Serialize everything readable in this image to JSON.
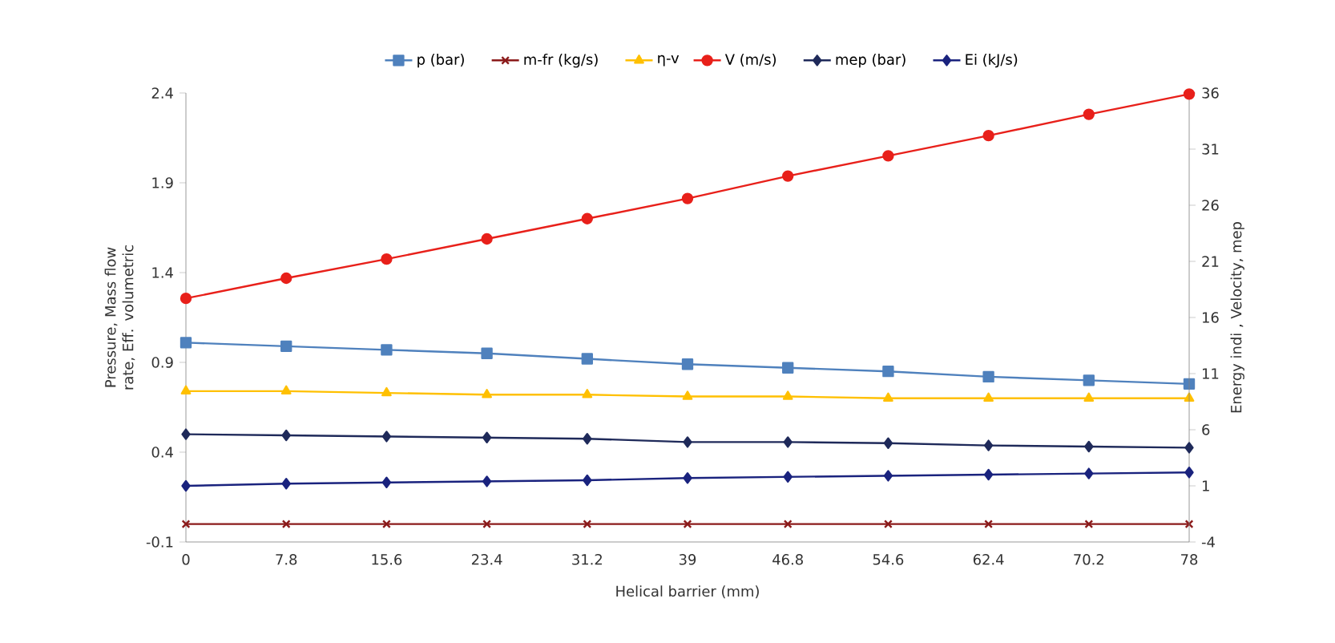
{
  "chart_data": {
    "type": "line",
    "xlabel": "Helical barrier (mm)",
    "ylabel": "Pressure, Mass flow rate, Eff. volumetric",
    "y2label": "Energy indi , Velocity, mep",
    "categories": [
      "0",
      "7.8",
      "15.6",
      "23.4",
      "31.2",
      "39",
      "46.8",
      "54.6",
      "62.4",
      "70.2",
      "78"
    ],
    "ylim": [
      -0.1,
      2.4
    ],
    "yticks": [
      -0.1,
      0.4,
      0.9,
      1.4,
      1.9,
      2.4
    ],
    "y2lim": [
      -4,
      36
    ],
    "y2ticks": [
      -4,
      1,
      6,
      11,
      16,
      21,
      26,
      31,
      36
    ],
    "legend": "top",
    "grid": false,
    "line_style": "solid",
    "series": [
      {
        "name": "p (bar)",
        "color": "#4f81bd",
        "marker": "square",
        "values": [
          1.01,
          0.99,
          0.97,
          0.95,
          0.92,
          0.89,
          0.87,
          0.85,
          0.82,
          0.8,
          0.78
        ]
      },
      {
        "name": "m-fr (kg/s)",
        "color": "#8b1a1a",
        "marker": "cross",
        "values": [
          0.0,
          0.0,
          0.0,
          0.0,
          0.0,
          0.0,
          0.0,
          0.0,
          0.0,
          0.0,
          0.0
        ]
      },
      {
        "name": "η-v",
        "color": "#ffc000",
        "marker": "triangle",
        "values": [
          0.74,
          0.74,
          0.73,
          0.72,
          0.72,
          0.71,
          0.71,
          0.7,
          0.7,
          0.7,
          0.7
        ]
      },
      {
        "name": "V (m/s)",
        "color": "#e8201a",
        "marker": "circle",
        "axis": "y2",
        "values": [
          17.7,
          19.5,
          21.2,
          23.0,
          24.8,
          26.6,
          28.6,
          30.4,
          32.2,
          34.1,
          35.9
        ]
      },
      {
        "name": "mep (bar)",
        "color": "#1f2a5a",
        "marker": "diamond",
        "axis": "y2",
        "values": [
          5.6,
          5.5,
          5.4,
          5.3,
          5.2,
          4.9,
          4.9,
          4.8,
          4.6,
          4.5,
          4.4
        ]
      },
      {
        "name": "Ei (kJ/s)",
        "color": "#1a237e",
        "marker": "diamond",
        "axis": "y2",
        "values": [
          1.0,
          1.2,
          1.3,
          1.4,
          1.5,
          1.7,
          1.8,
          1.9,
          2.0,
          2.1,
          2.2
        ]
      }
    ]
  }
}
